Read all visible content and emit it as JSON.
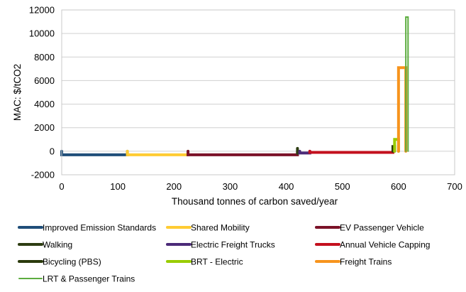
{
  "chart_data": {
    "type": "line",
    "title": "",
    "xlabel": "Thousand tonnes of carbon saved/year",
    "ylabel": "MAC: $/tCO2",
    "xlim": [
      0,
      700
    ],
    "ylim": [
      -2000,
      12000
    ],
    "x_ticks": [
      0,
      100,
      200,
      300,
      400,
      500,
      600,
      700
    ],
    "y_ticks": [
      -2000,
      0,
      2000,
      4000,
      6000,
      8000,
      10000,
      12000
    ],
    "grid": "horizontal",
    "legend_position": "bottom",
    "series": [
      {
        "name": "Improved Emission Standards",
        "color": "#1f4e79",
        "x_start": 0,
        "x_end": 117,
        "mac": -300
      },
      {
        "name": "Shared Mobility",
        "color": "#ffcc33",
        "x_start": 117,
        "x_end": 225,
        "mac": -300
      },
      {
        "name": "EV Passenger Vehicle",
        "color": "#7b1228",
        "x_start": 225,
        "x_end": 420,
        "mac": -300
      },
      {
        "name": "Walking",
        "color": "#2d3d12",
        "x_start": 420,
        "x_end": 424,
        "mac": 0
      },
      {
        "name": "Electric Freight Trucks",
        "color": "#4b2a78",
        "x_start": 424,
        "x_end": 442,
        "mac": -150
      },
      {
        "name": "Annual Vehicle Capping",
        "color": "#c4101e",
        "x_start": 442,
        "x_end": 590,
        "mac": -100
      },
      {
        "name": "Bicycling (PBS)",
        "color": "#2b3a0c",
        "x_start": 590,
        "x_end": 593,
        "mac": 400
      },
      {
        "name": "BRT - Electric",
        "color": "#99cc00",
        "x_start": 593,
        "x_end": 600,
        "mac": 1000
      },
      {
        "name": "Freight Trains",
        "color": "#f7941d",
        "x_start": 600,
        "x_end": 613,
        "mac": 7100
      },
      {
        "name": "LRT & Passenger Trains",
        "color": "#5cad3f",
        "x_start": 613,
        "x_end": 617,
        "mac": 11400
      }
    ]
  }
}
